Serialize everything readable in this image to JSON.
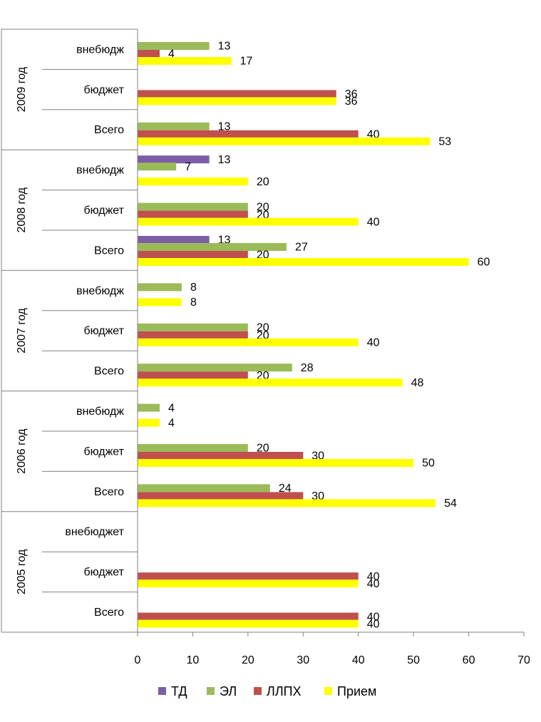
{
  "chart_data": {
    "type": "bar",
    "orientation": "horizontal",
    "title": "",
    "xlabel": "",
    "ylabel": "",
    "xlim": [
      0,
      70
    ],
    "x_ticks": [
      "0",
      "10",
      "20",
      "30",
      "40",
      "50",
      "60",
      "70"
    ],
    "legend_position": "bottom",
    "grid": false,
    "series": [
      {
        "name": "ТД",
        "color": "#7b5ea7"
      },
      {
        "name": "ЭЛ",
        "color": "#9bbb59"
      },
      {
        "name": "ЛЛПХ",
        "color": "#c0504d"
      },
      {
        "name": "Прием",
        "color": "#ffff00"
      }
    ],
    "groups": [
      {
        "year": "2009 год",
        "categories": [
          {
            "label": "внебюдж",
            "values": {
              "ТД": null,
              "ЭЛ": 13,
              "ЛЛПХ": 4,
              "Прием": 17
            }
          },
          {
            "label": "бюджет",
            "values": {
              "ТД": null,
              "ЭЛ": null,
              "ЛЛПХ": 36,
              "Прием": 36
            }
          },
          {
            "label": "Всего",
            "values": {
              "ТД": null,
              "ЭЛ": 13,
              "ЛЛПХ": 40,
              "Прием": 53
            }
          }
        ]
      },
      {
        "year": "2008 год",
        "categories": [
          {
            "label": "внебюдж",
            "values": {
              "ТД": 13,
              "ЭЛ": 7,
              "ЛЛПХ": null,
              "Прием": 20
            }
          },
          {
            "label": "бюджет",
            "values": {
              "ТД": null,
              "ЭЛ": 20,
              "ЛЛПХ": 20,
              "Прием": 40
            }
          },
          {
            "label": "Всего",
            "values": {
              "ТД": 13,
              "ЭЛ": 27,
              "ЛЛПХ": 20,
              "Прием": 60
            }
          }
        ]
      },
      {
        "year": "2007 год",
        "categories": [
          {
            "label": "внебюдж",
            "values": {
              "ТД": null,
              "ЭЛ": 8,
              "ЛЛПХ": null,
              "Прием": 8
            }
          },
          {
            "label": "бюджет",
            "values": {
              "ТД": null,
              "ЭЛ": 20,
              "ЛЛПХ": 20,
              "Прием": 40
            }
          },
          {
            "label": "Всего",
            "values": {
              "ТД": null,
              "ЭЛ": 28,
              "ЛЛПХ": 20,
              "Прием": 48
            }
          }
        ]
      },
      {
        "year": "2006 год",
        "categories": [
          {
            "label": "внебюдж",
            "values": {
              "ТД": null,
              "ЭЛ": 4,
              "ЛЛПХ": null,
              "Прием": 4
            }
          },
          {
            "label": "бюджет",
            "values": {
              "ТД": null,
              "ЭЛ": 20,
              "ЛЛПХ": 30,
              "Прием": 50
            }
          },
          {
            "label": "Всего",
            "values": {
              "ТД": null,
              "ЭЛ": 24,
              "ЛЛПХ": 30,
              "Прием": 54
            }
          }
        ]
      },
      {
        "year": "2005 год",
        "categories": [
          {
            "label": "внебюджет",
            "values": {
              "ТД": null,
              "ЭЛ": null,
              "ЛЛПХ": null,
              "Прием": null
            }
          },
          {
            "label": "бюджет",
            "values": {
              "ТД": null,
              "ЭЛ": null,
              "ЛЛПХ": 40,
              "Прием": 40
            }
          },
          {
            "label": "Всего",
            "values": {
              "ТД": null,
              "ЭЛ": null,
              "ЛЛПХ": 40,
              "Прием": 40
            }
          }
        ]
      }
    ]
  }
}
